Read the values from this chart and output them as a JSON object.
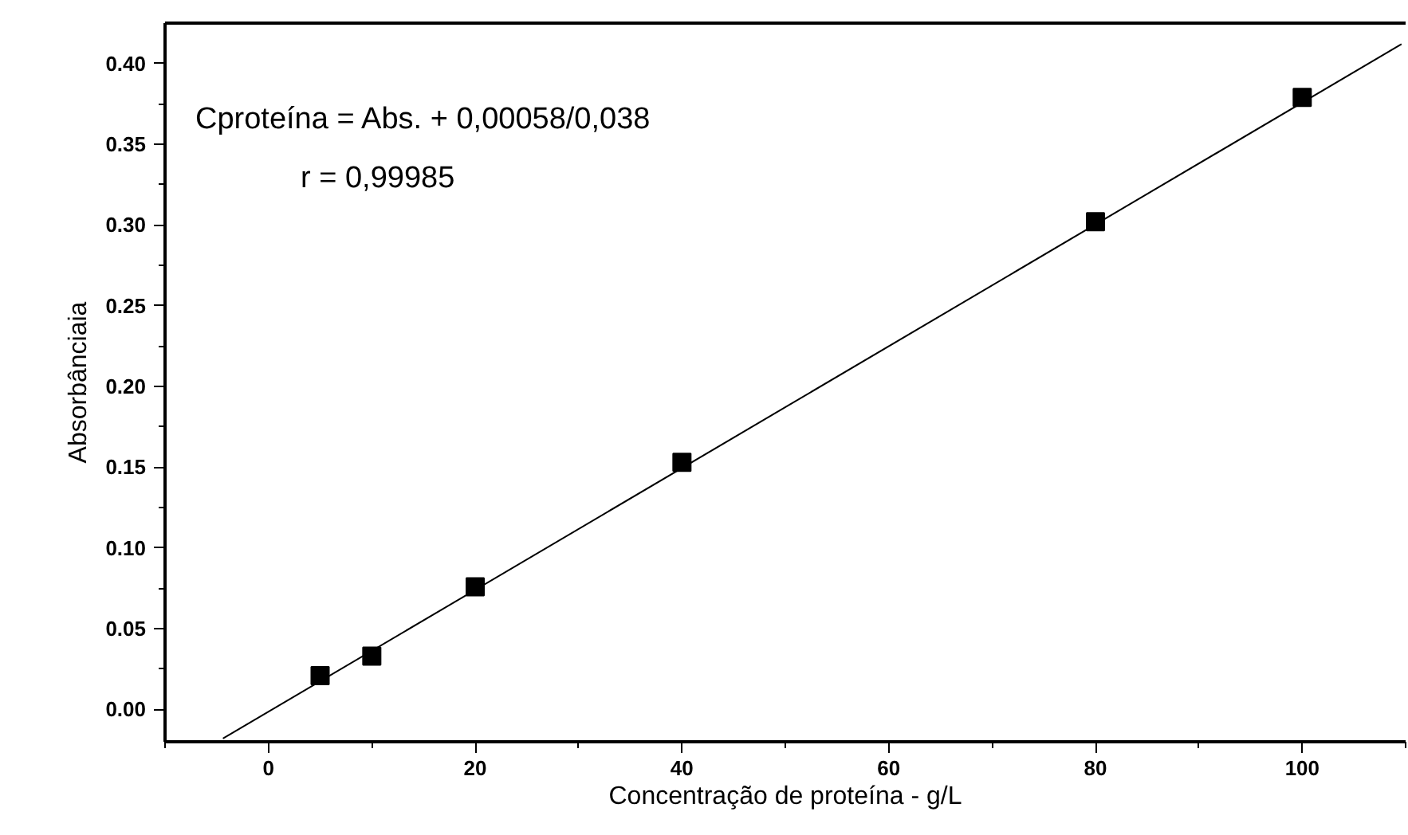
{
  "chart_data": {
    "type": "scatter",
    "xlabel": "Concentração de proteína - g/L",
    "ylabel": "Absorbânciaia",
    "annotations": [
      "Cproteína = Abs. + 0,00058/0,038",
      "r = 0,99985"
    ],
    "series": [
      {
        "color": "#000000",
        "marker": "square",
        "x": [
          5,
          10,
          20,
          40,
          80,
          100
        ],
        "values": [
          0.021,
          0.033,
          0.076,
          0.153,
          0.302,
          0.379
        ]
      },
      {
        "type": "line",
        "color": "#000000",
        "line_style": "solid",
        "x": [
          -4.4,
          109.6
        ],
        "values": [
          -0.018,
          0.412
        ]
      }
    ],
    "xlim": [
      -10,
      110
    ],
    "ylim": [
      -0.02,
      0.425
    ],
    "xticks": [
      0,
      20,
      40,
      60,
      80,
      100
    ],
    "yticks": [
      {
        "value": 0,
        "label": "0.00"
      },
      {
        "value": 0.05,
        "label": "0.05"
      },
      {
        "value": 0.1,
        "label": "0.10"
      },
      {
        "value": 0.15,
        "label": "0.15"
      },
      {
        "value": 0.2,
        "label": "0.20"
      },
      {
        "value": 0.25,
        "label": "0.25"
      },
      {
        "value": 0.3,
        "label": "0.30"
      },
      {
        "value": 0.35,
        "label": "0.35"
      },
      {
        "value": 0.4,
        "label": "0.40"
      }
    ],
    "grid": false
  }
}
